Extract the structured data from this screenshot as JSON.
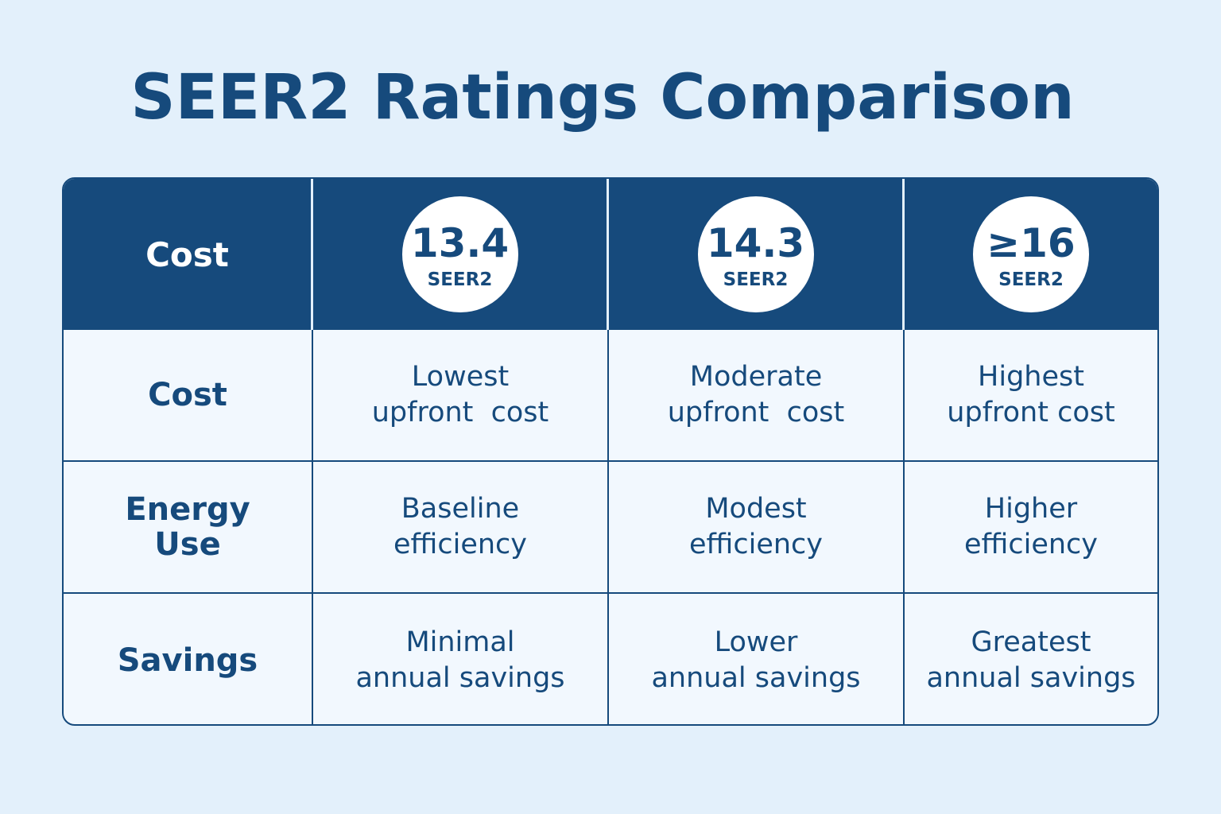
{
  "title": "SEER2 Ratings Comparison",
  "colors": {
    "brand": "#164a7c",
    "background": "#e3f0fb",
    "cell": "#f2f8fe"
  },
  "header": {
    "corner_label": "Cost",
    "ratings": [
      {
        "value": "13.4",
        "unit": "SEER2"
      },
      {
        "value": "14.3",
        "unit": "SEER2"
      },
      {
        "value": "≥16",
        "unit": "SEER2"
      }
    ]
  },
  "rows": [
    {
      "label": "Cost",
      "cells": [
        [
          "Lowest",
          "upfront  cost"
        ],
        [
          "Moderate",
          "upfront  cost"
        ],
        [
          "Highest",
          "upfront cost"
        ]
      ]
    },
    {
      "label": "Energy Use",
      "cells": [
        [
          "Baseline",
          "efficiency"
        ],
        [
          "Modest",
          "efficiency"
        ],
        [
          "Higher",
          "efficiency"
        ]
      ]
    },
    {
      "label": "Savings",
      "cells": [
        [
          "Minimal",
          "annual savings"
        ],
        [
          "Lower",
          "annual savings"
        ],
        [
          "Greatest",
          "annual savings"
        ]
      ]
    }
  ]
}
